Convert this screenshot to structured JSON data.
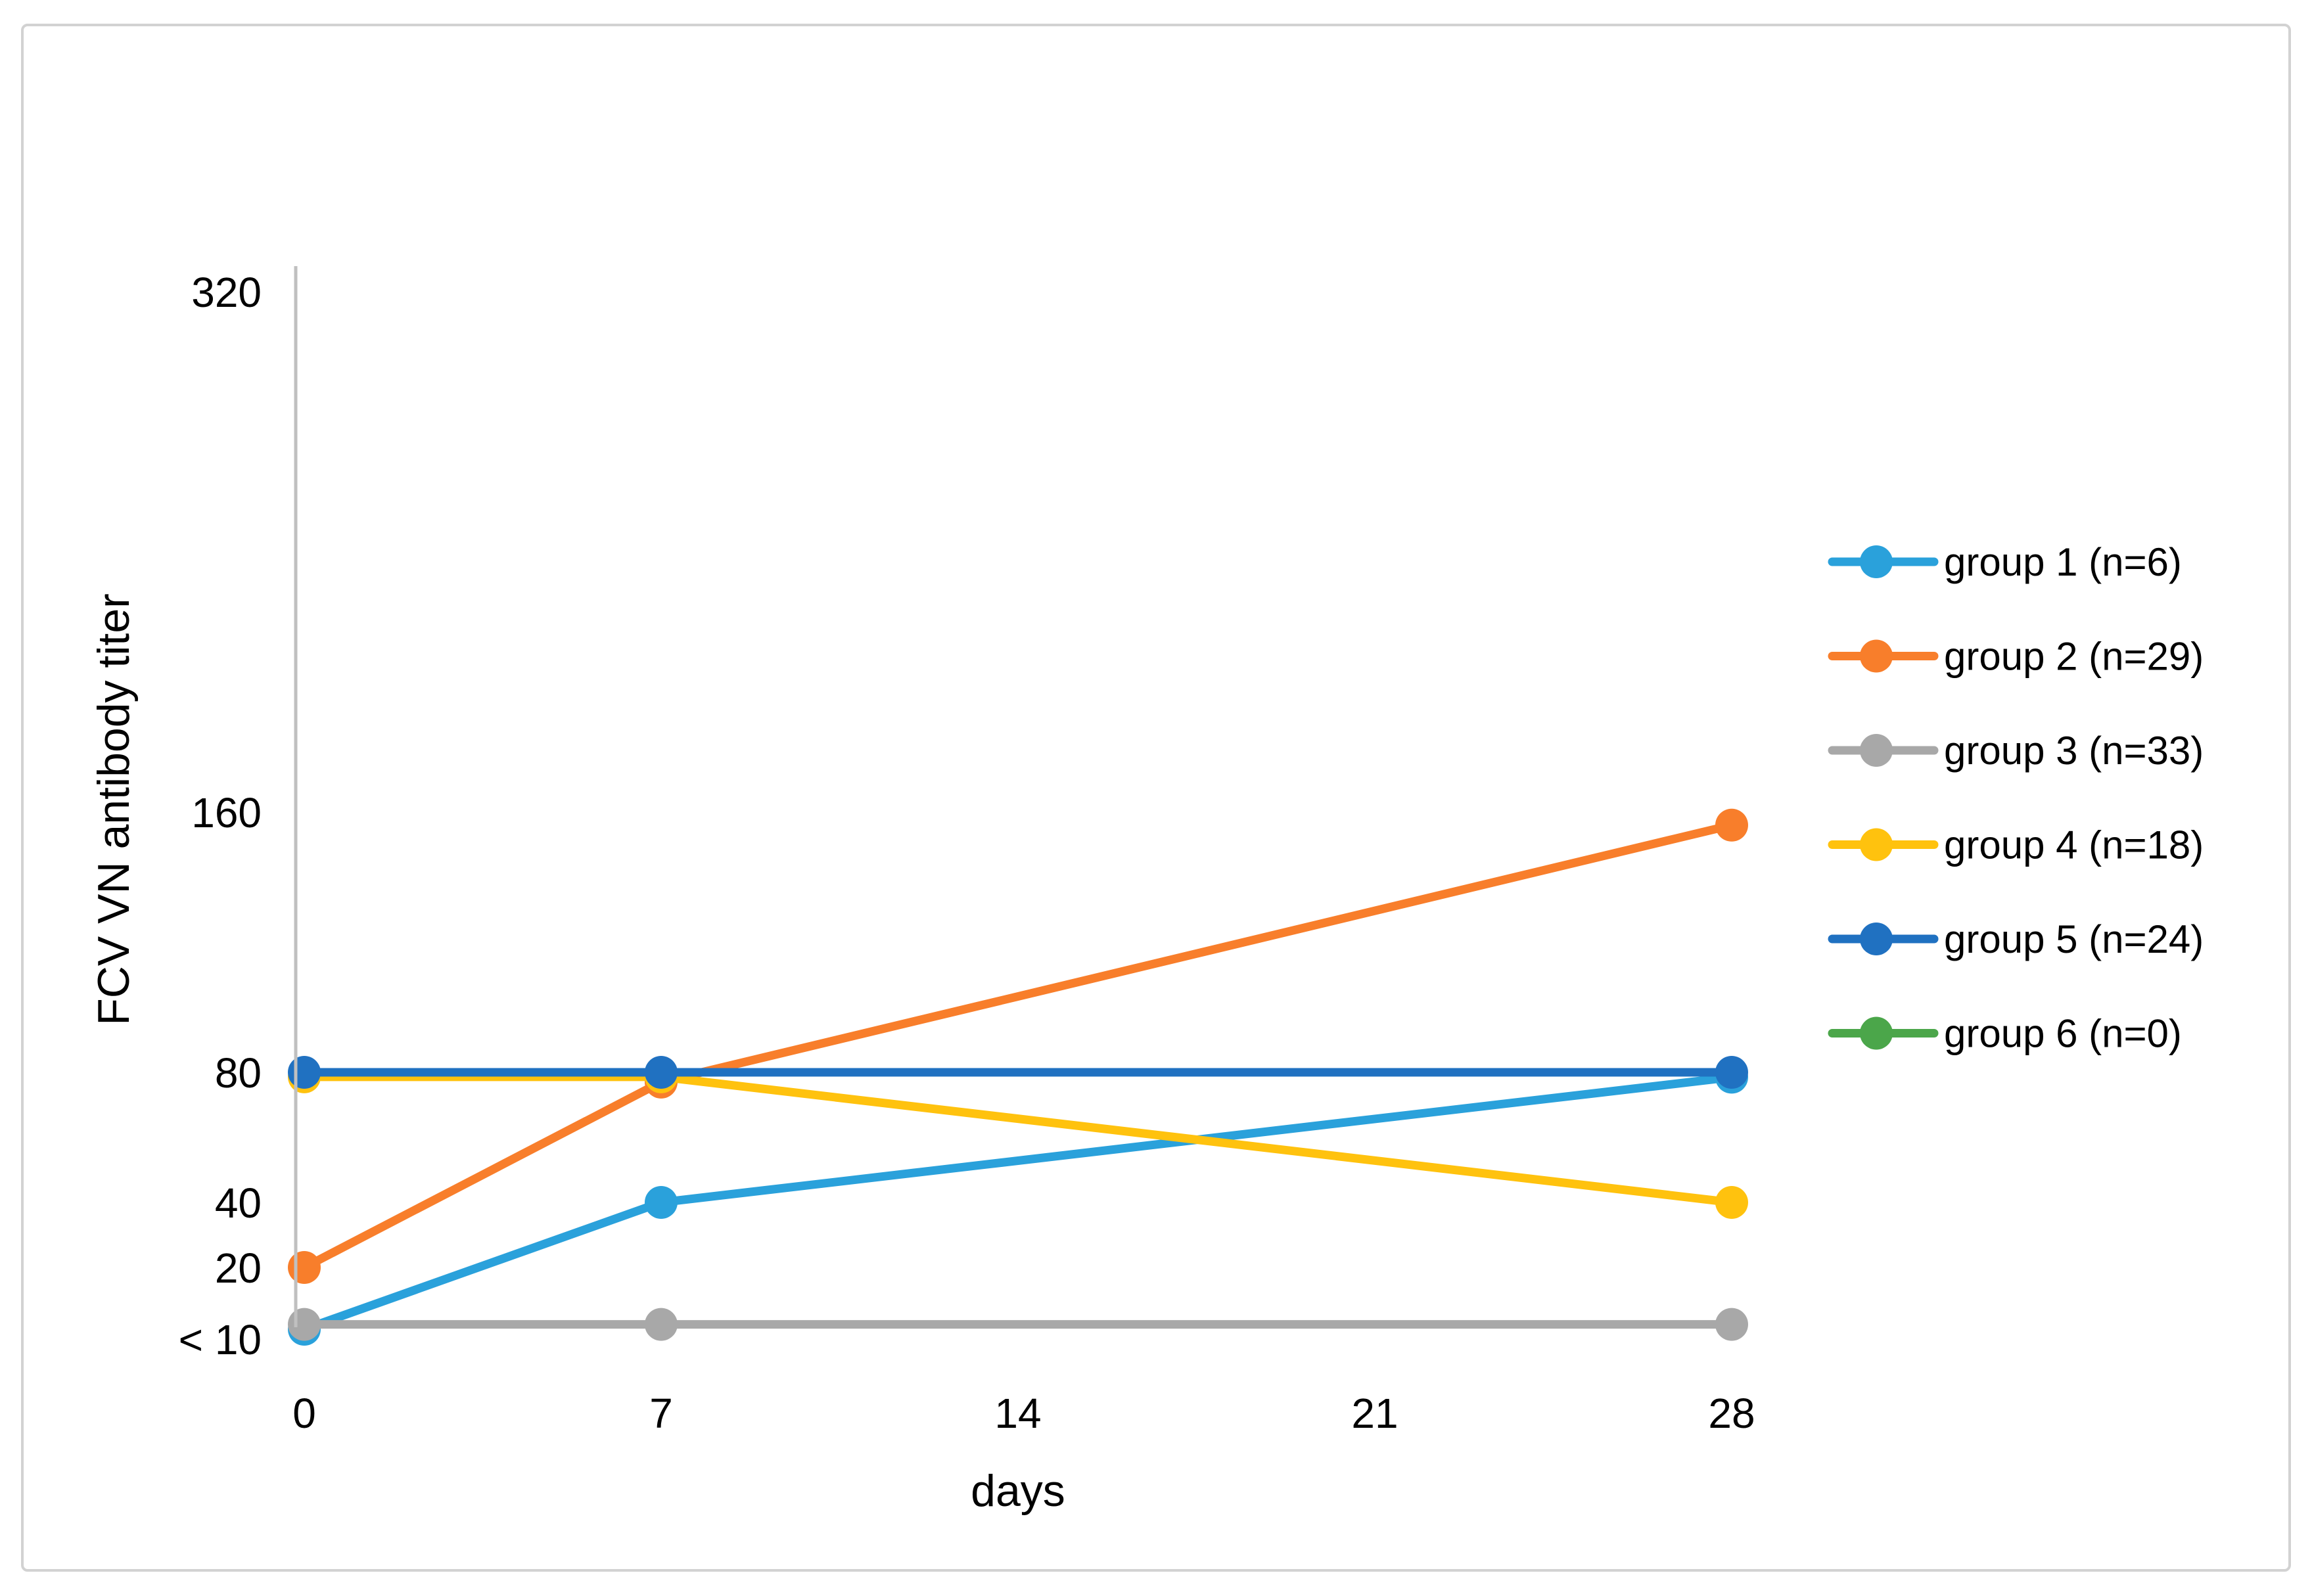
{
  "figure": {
    "background": "#FFFFFF",
    "border_color": "#D2D2D2"
  },
  "chart_data": {
    "type": "line",
    "title": "",
    "xlabel": "days",
    "ylabel": "FCV VN antibody titer",
    "grid": "off",
    "legend_position": "right",
    "x_axis": {
      "ticks": [
        0,
        7,
        14,
        21,
        28
      ],
      "tick_labels": [
        "0",
        "7",
        "14",
        "21",
        "28"
      ]
    },
    "y_axis": {
      "scale": "linear",
      "ylim": [
        0,
        330
      ],
      "axis_color": "#C0C0C0",
      "ticks": [
        {
          "label": "320",
          "value": 320
        },
        {
          "label": "160",
          "value": 160
        },
        {
          "label": "80",
          "value": 80
        },
        {
          "label": "40",
          "value": 40
        },
        {
          "label": "20",
          "value": 20
        },
        {
          "label": "< 10",
          "value": 0
        }
      ]
    },
    "x_points": [
      0,
      7,
      28
    ],
    "series": [
      {
        "name": "group 1 (n=6)",
        "color": "#2AA1DB",
        "values": [
          "< 10",
          40,
          80
        ],
        "plot_values": [
          1,
          40,
          78.5
        ]
      },
      {
        "name": "group 2 (n=29)",
        "color": "#F87E2B",
        "values": [
          20,
          80,
          155
        ],
        "plot_values": [
          20,
          77,
          156
        ]
      },
      {
        "name": "group 3 (n=33)",
        "color": "#A8A8A8",
        "values": [
          "< 10",
          "< 10",
          "< 10"
        ],
        "plot_values": [
          2.5,
          2.5,
          2.5
        ]
      },
      {
        "name": "group 4 (n=18)",
        "color": "#FFC20E",
        "values": [
          80,
          80,
          40
        ],
        "plot_values": [
          78.6,
          78.6,
          40
        ]
      },
      {
        "name": "group 5 (n=24)",
        "color": "#2071C1",
        "values": [
          80,
          80,
          80
        ],
        "plot_values": [
          80,
          80,
          80
        ]
      },
      {
        "name": "group 6 (n=0)",
        "color": "#4BA64A",
        "values": [],
        "plot_values": []
      }
    ]
  }
}
